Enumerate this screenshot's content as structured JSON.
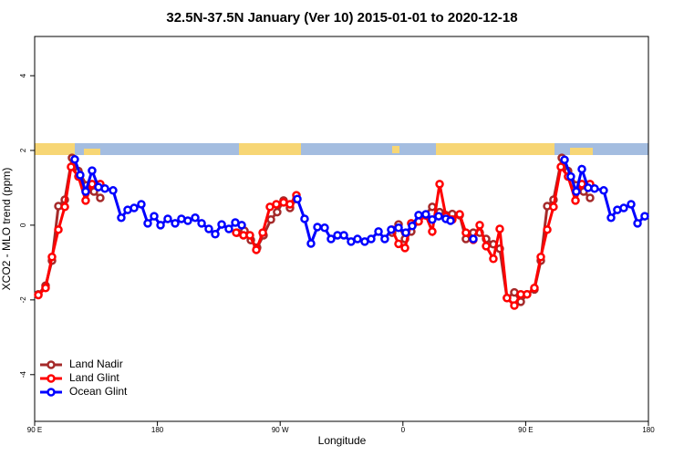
{
  "chart_data": {
    "type": "line",
    "title": "32.5N-37.5N January (Ver 10)   2015-01-01 to 2020-12-18",
    "xlabel": "Longitude",
    "ylabel": "XCO2 - MLO trend (ppm)",
    "xlim": [
      90,
      540
    ],
    "ylim": [
      -5.25,
      5.05
    ],
    "xticks": [
      {
        "value": 90,
        "label": "90 E"
      },
      180,
      {
        "value": 270,
        "label": "90 W"
      },
      {
        "value": 360,
        "label": "0"
      },
      {
        "value": 450,
        "label": "90 E"
      },
      {
        "value": 540,
        "label": "180"
      }
    ],
    "yticks": [
      -4,
      -2,
      0,
      2,
      4
    ],
    "legend": "bottom-left",
    "series": [
      {
        "name": "Land Nadir",
        "color": "#a52a2a",
        "x": [
          92.7,
          98.0,
          102.7,
          107.4,
          112.1,
          117.4,
          122.1,
          128.1,
          133.5,
          138.1,
          188,
          238.4,
          243.8,
          248.5,
          253.1,
          257.8,
          263.2,
          267.8,
          272.5,
          277.2,
          281.9,
          317,
          352.1,
          356.8,
          361.5,
          366.1,
          371.5,
          381.5,
          386.9,
          391.5,
          396.2,
          401.6,
          406.2,
          411.6,
          416.3,
          421.0,
          426.3,
          431.0,
          436.3,
          441.7,
          446.4,
          451.0,
          456.4,
          461.1,
          465.8,
          470.4,
          476.5,
          481.1,
          487.1,
          492.5,
          497.2
        ],
        "values": [
          -1.85,
          -1.62,
          -0.95,
          0.51,
          0.68,
          1.8,
          1.45,
          1.07,
          0.9,
          0.73,
          null,
          -0.2,
          -0.15,
          -0.4,
          -0.6,
          -0.27,
          0.15,
          0.35,
          0.66,
          0.46,
          0.7,
          null,
          -0.2,
          0.02,
          -0.37,
          -0.17,
          0.1,
          0.49,
          0.35,
          0.27,
          0.3,
          0.27,
          -0.37,
          -0.2,
          -0.2,
          -0.37,
          -0.51,
          -0.63,
          -1.95,
          -1.8,
          -2.05,
          -1.85,
          -1.72,
          -0.95,
          0.51,
          0.68,
          1.8,
          1.45,
          1.07,
          0.9,
          0.73
        ]
      },
      {
        "name": "Land Glint",
        "color": "#ff0000",
        "x": [
          92.7,
          98.0,
          102.7,
          107.4,
          112.1,
          116.7,
          122.1,
          127.4,
          132.1,
          138.1,
          188,
          237.8,
          243.1,
          247.8,
          252.5,
          257.2,
          262.5,
          267.2,
          272.5,
          277.2,
          281.9,
          317,
          352.1,
          356.8,
          361.5,
          366.1,
          371.5,
          376.8,
          381.5,
          386.9,
          391.5,
          396.2,
          401.6,
          406.2,
          411.6,
          416.3,
          421.0,
          426.3,
          431.0,
          436.3,
          441.7,
          446.4,
          451.0,
          456.4,
          461.1,
          465.8,
          470.4,
          475.8,
          481.1,
          486.5,
          491.2,
          497.2
        ],
        "values": [
          -1.87,
          -1.68,
          -0.85,
          -0.12,
          0.49,
          1.56,
          1.3,
          0.66,
          1.1,
          1.1,
          null,
          -0.2,
          -0.27,
          -0.27,
          -0.66,
          -0.2,
          0.49,
          0.56,
          0.61,
          0.56,
          0.8,
          null,
          -0.12,
          -0.5,
          -0.61,
          0.05,
          0.1,
          0.26,
          -0.17,
          1.1,
          0.24,
          0.15,
          0.29,
          -0.2,
          -0.39,
          0.0,
          -0.56,
          -0.9,
          -0.1,
          -1.95,
          -2.15,
          -1.85,
          -1.85,
          -1.68,
          -0.85,
          -0.12,
          0.49,
          1.56,
          1.3,
          0.66,
          1.1,
          1.1
        ]
      },
      {
        "name": "Ocean Glint",
        "color": "#0000ff",
        "x": [
          119.4,
          123.4,
          127.4,
          132.1,
          136.8,
          141.5,
          147.5,
          153.5,
          158.2,
          162.9,
          168.2,
          172.9,
          177.6,
          182.3,
          187.6,
          193.0,
          197.6,
          202.3,
          207.7,
          212.4,
          217.7,
          222.4,
          227.1,
          232.4,
          237.1,
          241.8,
          262,
          282.6,
          287.9,
          292.6,
          297.3,
          302.6,
          307.3,
          312.0,
          316.7,
          322.0,
          326.7,
          332.0,
          336.7,
          342.1,
          346.7,
          351.4,
          356.8,
          362.1,
          366.8,
          371.5,
          376.8,
          381.5,
          386.2,
          391.5,
          394.9,
          403,
          411.6,
          445,
          478.5,
          483.1,
          487.1,
          491.2,
          495.8,
          500.5,
          507.2,
          512.6,
          517.2,
          521.9,
          527.3,
          532.0,
          537.3
        ],
        "values": [
          1.76,
          1.34,
          0.9,
          1.46,
          1.02,
          0.98,
          0.93,
          0.2,
          0.41,
          0.46,
          0.56,
          0.05,
          0.24,
          0.0,
          0.17,
          0.05,
          0.17,
          0.12,
          0.2,
          0.05,
          -0.1,
          -0.24,
          0.02,
          -0.1,
          0.07,
          0.0,
          null,
          0.7,
          0.17,
          -0.49,
          -0.05,
          -0.07,
          -0.37,
          -0.27,
          -0.27,
          -0.44,
          -0.37,
          -0.44,
          -0.37,
          -0.17,
          -0.37,
          -0.12,
          -0.07,
          -0.2,
          -0.02,
          0.27,
          0.29,
          0.15,
          0.24,
          0.17,
          0.12,
          null,
          -0.37,
          null,
          1.75,
          1.3,
          0.9,
          1.5,
          1.0,
          0.98,
          0.93,
          0.2,
          0.41,
          0.46,
          0.56,
          0.05,
          0.24
        ]
      }
    ]
  }
}
